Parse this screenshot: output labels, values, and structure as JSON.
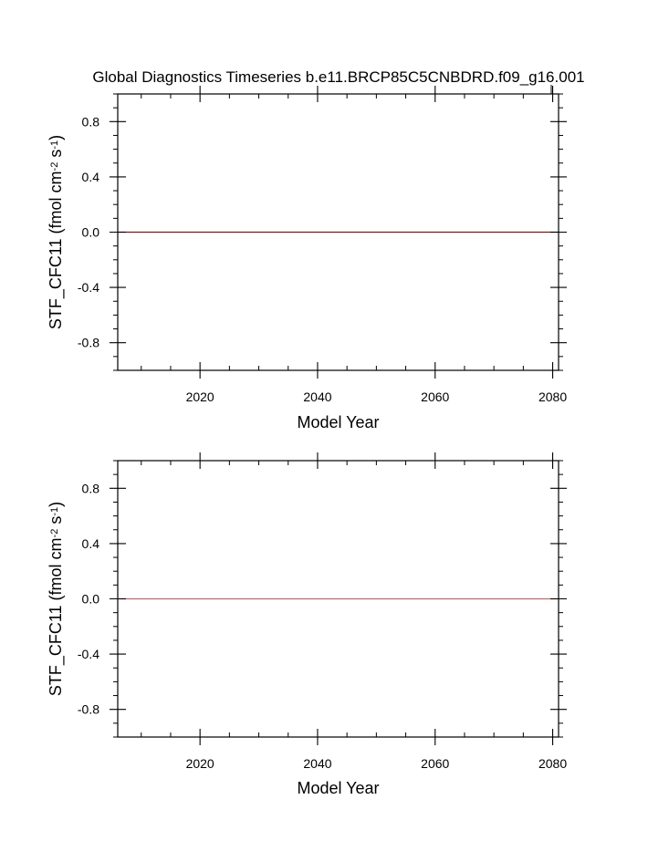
{
  "page": {
    "title": "Global Diagnostics Timeseries b.e11.BRCP85C5CNBDRD.f09_g16.001"
  },
  "chart_data": [
    {
      "type": "line",
      "xlabel": "Model Year",
      "ylabel_main": "STF_CFC11 (fmol cm",
      "ylabel_sup1": "-2",
      "ylabel_mid": " s",
      "ylabel_sup2": "-1",
      "ylabel_end": ")",
      "xlim": [
        2006,
        2081
      ],
      "ylim": [
        -1.0,
        1.0
      ],
      "x_ticks": [
        2020,
        2040,
        2060,
        2080
      ],
      "x_tick_labels": [
        "2020",
        "2040",
        "2060",
        "2080"
      ],
      "x_minor_step": 5,
      "y_ticks": [
        0.8,
        0.4,
        0.0,
        -0.4,
        -0.8
      ],
      "y_tick_labels": [
        "0.8",
        "0.4",
        "0.0",
        "-0.4",
        "-0.8"
      ],
      "y_minor_step": 0.1,
      "series": [
        {
          "x": [
            2006,
            2081
          ],
          "values": [
            0.0,
            0.0
          ],
          "color": "#6b1f1f"
        }
      ],
      "grid": false
    },
    {
      "type": "line",
      "xlabel": "Model Year",
      "ylabel_main": "STF_CFC11 (fmol cm",
      "ylabel_sup1": "-2",
      "ylabel_mid": " s",
      "ylabel_sup2": "-1",
      "ylabel_end": ")",
      "xlim": [
        2006,
        2081
      ],
      "ylim": [
        -1.0,
        1.0
      ],
      "x_ticks": [
        2020,
        2040,
        2060,
        2080
      ],
      "x_tick_labels": [
        "2020",
        "2040",
        "2060",
        "2080"
      ],
      "x_minor_step": 5,
      "y_ticks": [
        0.8,
        0.4,
        0.0,
        -0.4,
        -0.8
      ],
      "y_tick_labels": [
        "0.8",
        "0.4",
        "0.0",
        "-0.4",
        "-0.8"
      ],
      "y_minor_step": 0.1,
      "series": [
        {
          "x": [
            2006,
            2081
          ],
          "values": [
            0.0,
            0.0
          ],
          "color": "#b07070"
        }
      ],
      "grid": false
    }
  ]
}
